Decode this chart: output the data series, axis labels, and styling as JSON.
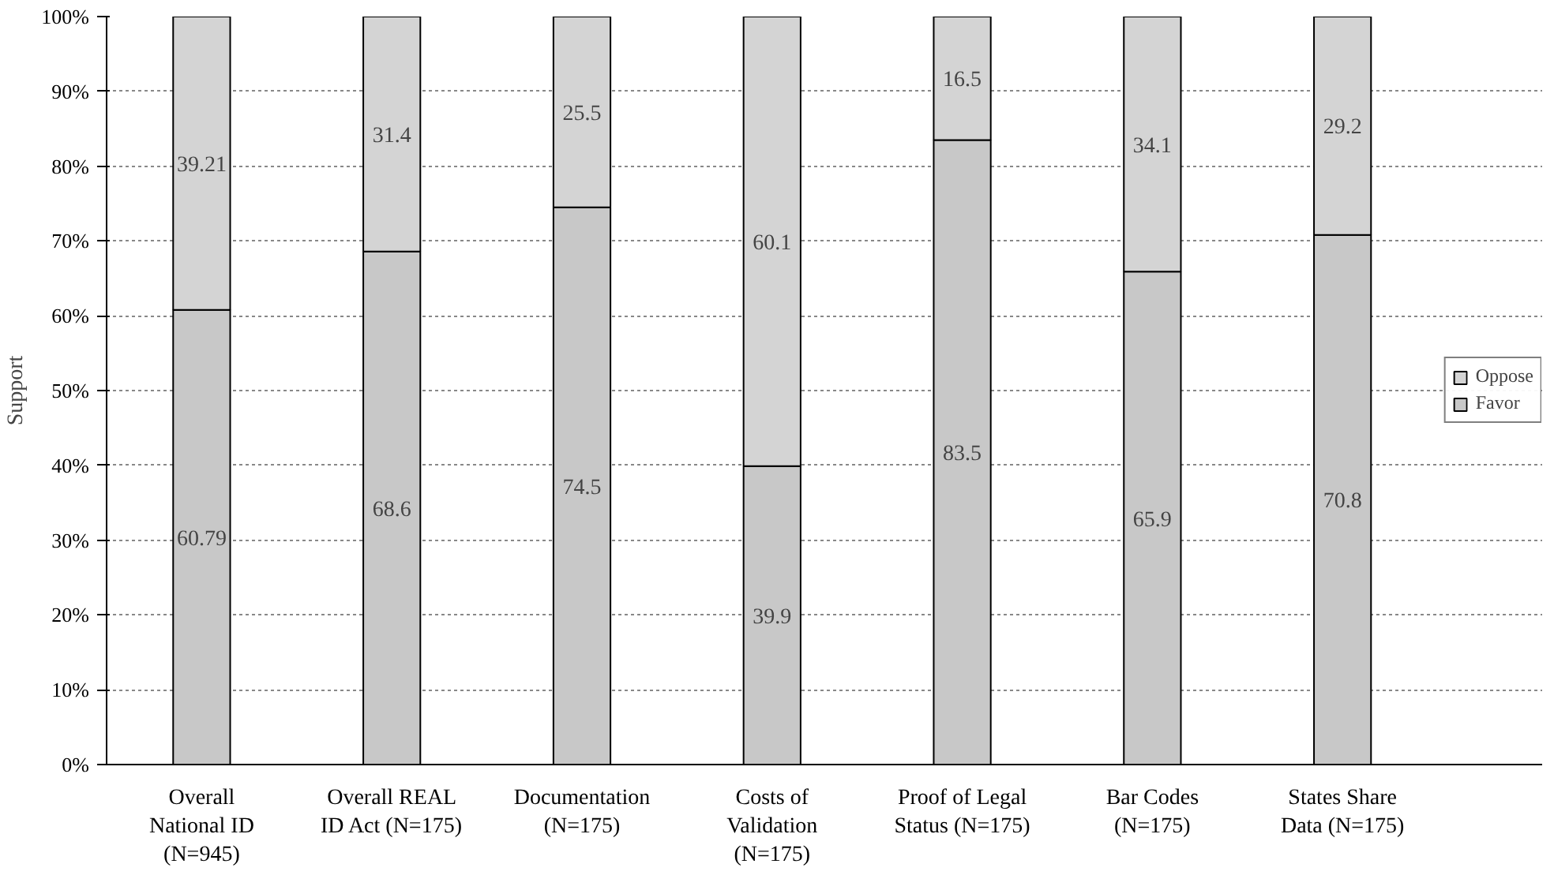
{
  "chart_data": {
    "type": "bar",
    "stacked": true,
    "ylabel": "Support",
    "categories": [
      "Overall\nNational ID\n(N=945)",
      "Overall REAL\nID Act (N=175)",
      "Documentation\n(N=175)",
      "Costs of\nValidation\n(N=175)",
      "Proof of Legal\nStatus (N=175)",
      "Bar Codes\n(N=175)",
      "States Share\nData (N=175)"
    ],
    "series": [
      {
        "name": "Favor",
        "color": "#c8c8c8",
        "values": [
          60.79,
          68.6,
          74.5,
          39.9,
          83.5,
          65.9,
          70.8
        ]
      },
      {
        "name": "Oppose",
        "color": "#d4d4d4",
        "values": [
          39.21,
          31.4,
          25.5,
          60.1,
          16.5,
          34.1,
          29.2
        ]
      }
    ],
    "ylim": [
      0,
      100
    ],
    "yticks": [
      {
        "value": 0,
        "label": "0%"
      },
      {
        "value": 10,
        "label": "10%"
      },
      {
        "value": 20,
        "label": "20%"
      },
      {
        "value": 30,
        "label": "30%"
      },
      {
        "value": 40,
        "label": "40%"
      },
      {
        "value": 50,
        "label": "50%"
      },
      {
        "value": 60,
        "label": "60%"
      },
      {
        "value": 70,
        "label": "70%"
      },
      {
        "value": 80,
        "label": "80%"
      },
      {
        "value": 90,
        "label": "90%"
      },
      {
        "value": 100,
        "label": "100%"
      }
    ],
    "grid": "y",
    "legend": "right",
    "data_labels": true
  }
}
